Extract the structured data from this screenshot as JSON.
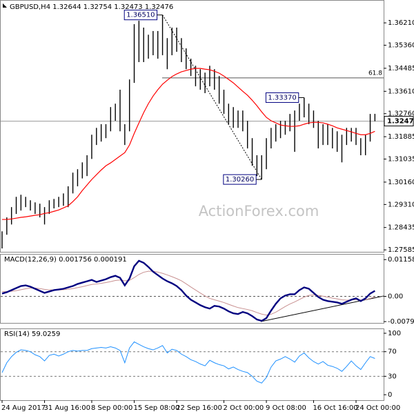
{
  "chart_data": [
    {
      "type": "price_bars",
      "title": "GBPUSD,H4  1.32644 1.32754 1.32473 1.32476",
      "watermark": "ActionForex.com",
      "categories": [
        "24 Aug 2017",
        null,
        null,
        null,
        null,
        null,
        null,
        null,
        null,
        "31 Aug 16:00",
        null,
        null,
        null,
        null,
        null,
        null,
        null,
        null,
        null,
        "8 Sep 00:00",
        null,
        null,
        null,
        null,
        null,
        null,
        null,
        null,
        "15 Sep 08:00",
        null,
        null,
        null,
        null,
        null,
        null,
        null,
        null,
        "22 Sep 16:00",
        null,
        null,
        null,
        null,
        null,
        null,
        null,
        null,
        null,
        "2 Oct 00:00",
        null,
        null,
        null,
        null,
        null,
        null,
        null,
        null,
        "9 Oct 08:00",
        null,
        null,
        null,
        null,
        null,
        null,
        null,
        null,
        null,
        "16 Oct 16:00",
        null,
        null,
        null,
        null,
        null,
        null,
        null,
        null,
        "24 Oct 00:00",
        null,
        null,
        null,
        null
      ],
      "high": [
        1.2829,
        1.2882,
        1.2921,
        1.296,
        1.2968,
        1.296,
        1.2947,
        1.2939,
        1.2934,
        1.2921,
        1.2947,
        1.2952,
        1.296,
        1.2973,
        1.3,
        1.3052,
        1.3065,
        1.3091,
        1.3118,
        1.3196,
        1.3222,
        1.3236,
        1.3236,
        1.3301,
        1.3314,
        1.3367,
        1.3236,
        1.3406,
        1.3616,
        1.3629,
        1.3603,
        1.3576,
        1.359,
        1.359,
        1.3651,
        1.3563,
        1.3603,
        1.3603,
        1.3563,
        1.3524,
        1.3485,
        1.3458,
        1.3445,
        1.3432,
        1.3458,
        1.3445,
        1.3419,
        1.3367,
        1.3314,
        1.3301,
        1.3288,
        1.3288,
        1.3249,
        1.3183,
        1.3118,
        1.3118,
        1.3183,
        1.3222,
        1.3236,
        1.3249,
        1.3249,
        1.3275,
        1.3288,
        1.3314,
        1.3337,
        1.3314,
        1.3288,
        1.3249,
        1.3236,
        1.3236,
        1.3222,
        1.3209,
        1.3196,
        1.3222,
        1.3222,
        1.3222,
        1.3183,
        1.3196,
        1.3275,
        1.32754
      ],
      "low": [
        1.2764,
        1.2816,
        1.2855,
        1.2895,
        1.2908,
        1.2921,
        1.2908,
        1.2895,
        1.2882,
        1.2855,
        1.2895,
        1.2916,
        1.2921,
        1.2926,
        1.2921,
        1.2973,
        1.3,
        1.303,
        1.3039,
        1.3104,
        1.3157,
        1.317,
        1.3183,
        1.3209,
        1.3249,
        1.3209,
        1.3157,
        1.3209,
        1.3393,
        1.3472,
        1.3472,
        1.3485,
        1.3498,
        1.3485,
        1.3498,
        1.3445,
        1.3498,
        1.3511,
        1.3472,
        1.3445,
        1.3419,
        1.338,
        1.3367,
        1.3354,
        1.338,
        1.3367,
        1.3314,
        1.3275,
        1.3236,
        1.3222,
        1.3222,
        1.3209,
        1.3144,
        1.3078,
        1.3039,
        1.3026,
        1.3065,
        1.3144,
        1.317,
        1.3183,
        1.3196,
        1.3209,
        1.3131,
        1.3249,
        1.3262,
        1.3236,
        1.3222,
        1.3144,
        1.3157,
        1.3157,
        1.3144,
        1.3131,
        1.3091,
        1.3157,
        1.317,
        1.3157,
        1.3118,
        1.3118,
        1.317,
        1.32473
      ],
      "color": "#000000",
      "ma": {
        "color": "#ff0000",
        "values": [
          1.2874,
          1.2874,
          1.2876,
          1.2879,
          1.2882,
          1.2884,
          1.2887,
          1.289,
          1.2892,
          1.2897,
          1.29,
          1.2905,
          1.291,
          1.2918,
          1.2926,
          1.2942,
          1.296,
          1.2984,
          1.3005,
          1.3026,
          1.3044,
          1.3062,
          1.3078,
          1.3089,
          1.3102,
          1.3115,
          1.3128,
          1.3157,
          1.3201,
          1.3241,
          1.328,
          1.3314,
          1.3343,
          1.3367,
          1.3388,
          1.3403,
          1.3417,
          1.3427,
          1.3435,
          1.344,
          1.3445,
          1.3448,
          1.3448,
          1.3445,
          1.3443,
          1.3437,
          1.343,
          1.3419,
          1.3406,
          1.3393,
          1.3377,
          1.3361,
          1.3346,
          1.3327,
          1.3306,
          1.3283,
          1.3262,
          1.3249,
          1.3241,
          1.3233,
          1.323,
          1.3228,
          1.3228,
          1.323,
          1.3236,
          1.3241,
          1.3243,
          1.3243,
          1.3241,
          1.3236,
          1.323,
          1.3222,
          1.3217,
          1.3212,
          1.3207,
          1.3201,
          1.3196,
          1.3196,
          1.3201,
          1.3209
        ]
      },
      "ylim": [
        1.2751,
        1.37
      ],
      "yticks": [
        {
          "value": 1.3621,
          "label": "1.36210"
        },
        {
          "value": 1.3536,
          "label": "1.35360"
        },
        {
          "value": 1.34485,
          "label": "1.34485"
        },
        {
          "value": 1.3361,
          "label": "1.33610"
        },
        {
          "value": 1.3276,
          "label": "1.32760"
        },
        {
          "value": 1.31885,
          "label": "1.31885"
        },
        {
          "value": 1.31035,
          "label": "1.31035"
        },
        {
          "value": 1.3016,
          "label": "1.30160"
        },
        {
          "value": 1.2931,
          "label": "1.29310"
        },
        {
          "value": 1.28435,
          "label": "1.28435"
        },
        {
          "value": 1.27585,
          "label": "1.27585"
        }
      ],
      "last_price": 1.32476,
      "fib": {
        "value": 1.3412,
        "label": "61.8"
      },
      "annotations": [
        {
          "value": 1.3651,
          "label": "1.36510"
        },
        {
          "value": 1.3337,
          "label": "1.33370"
        },
        {
          "value": 1.3026,
          "label": "1.30260"
        }
      ]
    },
    {
      "type": "macd",
      "title": "MACD(12,26,9) 0.001756 0.000191",
      "macd_line": {
        "color": "#000080",
        "values": [
          0.00088,
          0.00131,
          0.00196,
          0.00261,
          0.00325,
          0.00347,
          0.00304,
          0.00239,
          0.00174,
          0.0011,
          0.00153,
          0.00196,
          0.00217,
          0.00239,
          0.00282,
          0.00325,
          0.0039,
          0.00433,
          0.00476,
          0.00519,
          0.00454,
          0.00497,
          0.00541,
          0.00605,
          0.00648,
          0.00584,
          0.00347,
          0.00562,
          0.0095,
          0.01122,
          0.01058,
          0.00928,
          0.00777,
          0.0067,
          0.00562,
          0.00476,
          0.00411,
          0.00325,
          0.00196,
          0.00024,
          -0.00106,
          -0.00192,
          -0.00278,
          -0.00343,
          -0.00386,
          -0.003,
          -0.00321,
          -0.00386,
          -0.00472,
          -0.00536,
          -0.00558,
          -0.00493,
          -0.00536,
          -0.00623,
          -0.0073,
          -0.00773,
          -0.00687,
          -0.0045,
          -0.00235,
          -0.00063,
          0.00024,
          0.00067,
          0.00067,
          0.00196,
          0.00282,
          0.00239,
          0.0011,
          -0.00019,
          -0.00106,
          -0.00149,
          -0.0017,
          -0.00192,
          -0.00235,
          -0.0017,
          -0.00106,
          -0.00063,
          -0.00149,
          -0.00063,
          0.00088,
          0.00174
        ]
      },
      "signal_line": {
        "color": "#c89090",
        "values": [
          0.0015,
          0.0015,
          0.0016,
          0.0018,
          0.0021,
          0.0024,
          0.0026,
          0.0026,
          0.00245,
          0.0022,
          0.00205,
          0.002,
          0.002,
          0.0021,
          0.00225,
          0.00245,
          0.00275,
          0.00305,
          0.0034,
          0.00375,
          0.0039,
          0.0041,
          0.00435,
          0.00465,
          0.005,
          0.00515,
          0.0049,
          0.00505,
          0.0059,
          0.0069,
          0.0076,
          0.0079,
          0.0079,
          0.00765,
          0.00725,
          0.00675,
          0.0062,
          0.0056,
          0.0049,
          0.00395,
          0.00295,
          0.002,
          0.00105,
          0.00015,
          -0.00065,
          -0.0011,
          -0.0015,
          -0.00195,
          -0.0025,
          -0.00305,
          -0.00355,
          -0.00385,
          -0.00415,
          -0.00455,
          -0.0051,
          -0.0056,
          -0.0059,
          -0.00565,
          -0.005,
          -0.0041,
          -0.0032,
          -0.0024,
          -0.00175,
          -0.001,
          -0.00025,
          0.0003,
          0.00045,
          0.0003,
          5e-05,
          -0.00025,
          -0.00055,
          -0.0008,
          -0.0011,
          -0.0012,
          -0.00115,
          -0.00105,
          -0.00115,
          -0.00105,
          -0.00065,
          -0.00015
        ]
      },
      "ylim": [
        -0.00838,
        0.01316
      ],
      "yticks": [
        0.011588,
        {
          "value": 0,
          "label": "0.00"
        },
        -0.007961
      ],
      "zero_line": true
    },
    {
      "type": "line",
      "title": "RSI(14) 59.0259",
      "color": "#1e90ff",
      "values": [
        36,
        52,
        62,
        69,
        73,
        72,
        70,
        65,
        62,
        55,
        64,
        66,
        63,
        66,
        70,
        72,
        71,
        72,
        72,
        75,
        76,
        77,
        76,
        78,
        76,
        72,
        52,
        76,
        86,
        82,
        78,
        75,
        73,
        76,
        80,
        68,
        74,
        72,
        66,
        62,
        57,
        54,
        50,
        47,
        56,
        52,
        49,
        47,
        42,
        45,
        41,
        38,
        36,
        30,
        22,
        19,
        28,
        45,
        55,
        58,
        62,
        58,
        53,
        63,
        68,
        60,
        54,
        50,
        54,
        48,
        46,
        43,
        38,
        46,
        55,
        47,
        41,
        52,
        62,
        59
      ],
      "ylim": [
        -8.9,
        106.7
      ],
      "yticks": [
        100,
        70,
        30,
        0
      ],
      "levels": [
        70,
        30
      ]
    }
  ]
}
